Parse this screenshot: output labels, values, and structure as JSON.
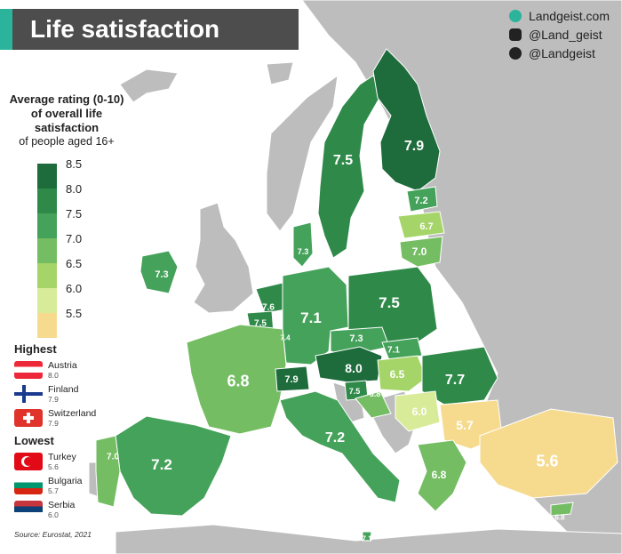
{
  "title": "Life satisfaction",
  "social": {
    "website": "Landgeist.com",
    "instagram": "@Land_geist",
    "twitter": "@Landgeist"
  },
  "legend": {
    "title": "Average rating (0-10) of overall life satisfaction",
    "subtitle": "of people aged 16+",
    "ticks": [
      "8.5",
      "8.0",
      "7.5",
      "7.0",
      "6.5",
      "6.0",
      "5.5"
    ],
    "colors": [
      "#1e6b3c",
      "#2f8a4a",
      "#45a25a",
      "#74bd63",
      "#a5d568",
      "#d8eb99",
      "#f6db8f"
    ]
  },
  "highest": {
    "heading": "Highest",
    "items": [
      {
        "country": "Austria",
        "value": "8.0"
      },
      {
        "country": "Finland",
        "value": "7.9"
      },
      {
        "country": "Switzerland",
        "value": "7.9"
      }
    ]
  },
  "lowest": {
    "heading": "Lowest",
    "items": [
      {
        "country": "Turkey",
        "value": "5.6"
      },
      {
        "country": "Bulgaria",
        "value": "5.7"
      },
      {
        "country": "Serbia",
        "value": "6.0"
      }
    ]
  },
  "source": "Source: Eurostat, 2021",
  "colors": {
    "no_data": "#bdbdbd",
    "sea": "#ffffff",
    "border": "#ffffff",
    "title_bar": "#4d4d4d",
    "accent": "#2bb39b"
  },
  "regions": [
    {
      "id": "sweden",
      "value": "7.5"
    },
    {
      "id": "finland",
      "value": "7.9"
    },
    {
      "id": "estonia",
      "value": "7.2"
    },
    {
      "id": "latvia",
      "value": "6.7"
    },
    {
      "id": "lithuania",
      "value": "7.0"
    },
    {
      "id": "denmark",
      "value": "7.3"
    },
    {
      "id": "ireland",
      "value": "7.3"
    },
    {
      "id": "netherlands",
      "value": "7.6"
    },
    {
      "id": "belgium",
      "value": "7.5"
    },
    {
      "id": "luxembourg",
      "value": "7.4"
    },
    {
      "id": "germany",
      "value": "7.1"
    },
    {
      "id": "poland",
      "value": "7.5"
    },
    {
      "id": "czechia",
      "value": "7.3"
    },
    {
      "id": "slovakia",
      "value": "7.1"
    },
    {
      "id": "austria",
      "value": "8.0"
    },
    {
      "id": "hungary",
      "value": "6.5"
    },
    {
      "id": "romania",
      "value": "7.7"
    },
    {
      "id": "france",
      "value": "6.8"
    },
    {
      "id": "switzerland",
      "value": "7.9"
    },
    {
      "id": "slovenia",
      "value": "7.5"
    },
    {
      "id": "croatia",
      "value": "6.8"
    },
    {
      "id": "serbia",
      "value": "6.0"
    },
    {
      "id": "bulgaria",
      "value": "5.7"
    },
    {
      "id": "italy",
      "value": "7.2"
    },
    {
      "id": "spain",
      "value": "7.2"
    },
    {
      "id": "portugal",
      "value": "7.0"
    },
    {
      "id": "greece",
      "value": "6.8"
    },
    {
      "id": "turkey",
      "value": "5.6"
    },
    {
      "id": "cyprus",
      "value": "6.8"
    },
    {
      "id": "malta",
      "value": "7.1"
    }
  ]
}
